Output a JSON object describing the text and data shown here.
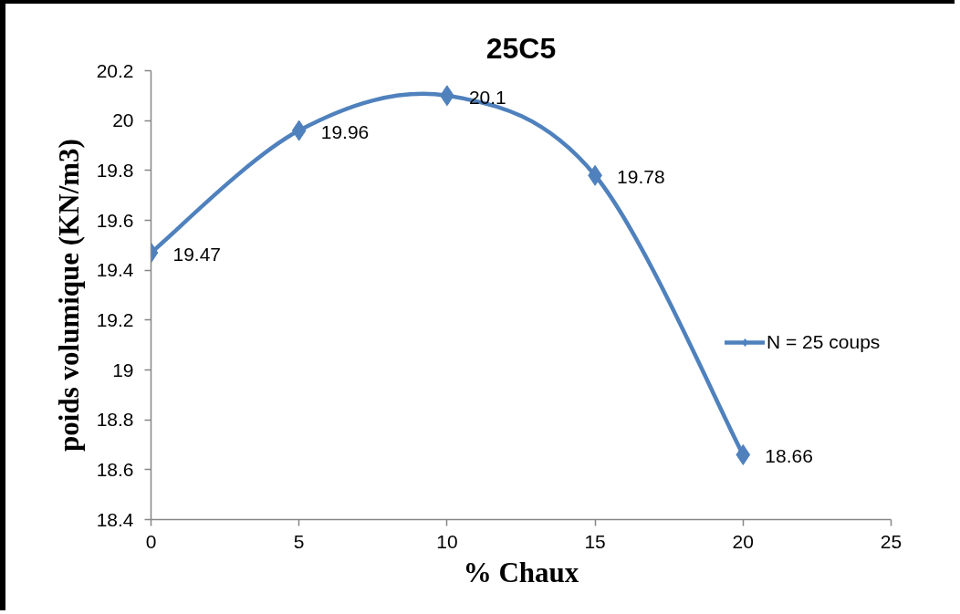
{
  "chart_data": {
    "type": "line",
    "title": "25C5",
    "xlabel": "% Chaux",
    "ylabel": "poids volumique (KN/m3)",
    "x": [
      0,
      5,
      10,
      15,
      20
    ],
    "series": [
      {
        "name": "N = 25 coups",
        "color": "#4f81bd",
        "values": [
          19.47,
          19.96,
          20.1,
          19.78,
          18.66
        ]
      }
    ],
    "xlim": [
      0,
      25
    ],
    "ylim": [
      18.4,
      20.2
    ],
    "xticks": [
      0,
      5,
      10,
      15,
      20,
      25
    ],
    "yticks": [
      18.4,
      18.6,
      18.8,
      19,
      19.2,
      19.4,
      19.6,
      19.8,
      20,
      20.2
    ],
    "grid": false,
    "legend": "right",
    "marker": "diamond",
    "line_style": "solid",
    "data_labels": true
  }
}
